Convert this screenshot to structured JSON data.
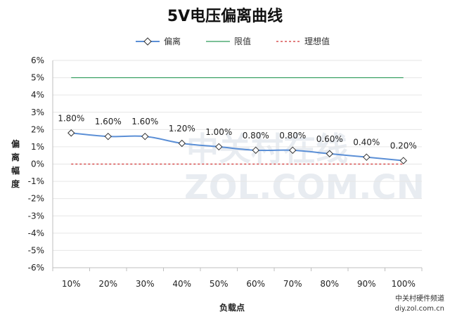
{
  "chart_data": {
    "type": "line",
    "title": "5V电压偏离曲线",
    "xlabel": "负载点",
    "ylabel": "偏离幅度",
    "categories": [
      "10%",
      "20%",
      "30%",
      "40%",
      "50%",
      "60%",
      "70%",
      "80%",
      "90%",
      "100%"
    ],
    "series": [
      {
        "name": "偏离",
        "values": [
          1.8,
          1.6,
          1.6,
          1.2,
          1.0,
          0.8,
          0.8,
          0.6,
          0.4,
          0.2
        ],
        "labels": [
          "1.80%",
          "1.60%",
          "1.60%",
          "1.20%",
          "1.00%",
          "0.80%",
          "0.80%",
          "0.60%",
          "0.40%",
          "0.20%"
        ],
        "color": "#5b8fd6",
        "marker": "diamond"
      },
      {
        "name": "限值",
        "values": [
          5,
          5,
          5,
          5,
          5,
          5,
          5,
          5,
          5,
          5
        ],
        "color": "#2e9c5a"
      },
      {
        "name": "理想值",
        "values": [
          0,
          0,
          0,
          0,
          0,
          0,
          0,
          0,
          0,
          0
        ],
        "color": "#d03030",
        "dashed": true
      }
    ],
    "ylim": [
      -6,
      6
    ],
    "yticks": [
      "-6%",
      "-5%",
      "-4%",
      "-3%",
      "-2%",
      "-1%",
      "0%",
      "1%",
      "2%",
      "3%",
      "4%",
      "5%",
      "6%"
    ],
    "grid": true,
    "legend": "top-center"
  },
  "watermark": {
    "line1": "中关村在线",
    "line2": "ZOL.COM.CN"
  },
  "credit": {
    "line1": "中关村硬件频道",
    "line2": "diy.zol.com.cn"
  }
}
